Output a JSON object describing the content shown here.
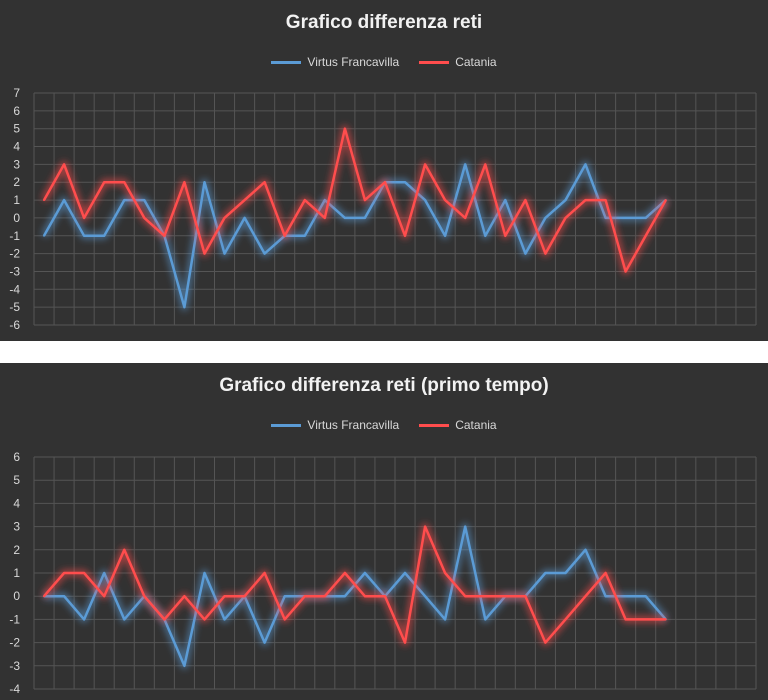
{
  "chart_data": [
    {
      "type": "line",
      "title": "Grafico differenza reti",
      "ylim": [
        -6,
        7
      ],
      "yticks": [
        -6,
        -5,
        -4,
        -3,
        -2,
        -1,
        0,
        1,
        2,
        3,
        4,
        5,
        6,
        7
      ],
      "grid": true,
      "legend_position": "top",
      "n_columns": 36,
      "series": [
        {
          "name": "Virtus Francavilla",
          "color": "#5b9bd5",
          "values": [
            -1,
            1,
            -1,
            -1,
            1,
            1,
            -1,
            -5,
            2,
            -2,
            0,
            -2,
            -1,
            -1,
            1,
            0,
            0,
            2,
            2,
            1,
            -1,
            3,
            -1,
            1,
            -2,
            0,
            1,
            3,
            0,
            0,
            0,
            1
          ]
        },
        {
          "name": "Catania",
          "color": "#ff4d4d",
          "values": [
            1,
            3,
            0,
            2,
            2,
            0,
            -1,
            2,
            -2,
            0,
            1,
            2,
            -1,
            1,
            0,
            5,
            1,
            2,
            -1,
            3,
            1,
            0,
            3,
            -1,
            1,
            -2,
            0,
            1,
            1,
            -3,
            -1,
            1
          ]
        }
      ]
    },
    {
      "type": "line",
      "title": "Grafico differenza reti (primo tempo)",
      "ylim": [
        -4,
        6
      ],
      "yticks": [
        -4,
        -3,
        -2,
        -1,
        0,
        1,
        2,
        3,
        4,
        5,
        6
      ],
      "grid": true,
      "legend_position": "top",
      "n_columns": 36,
      "series": [
        {
          "name": "Virtus Francavilla",
          "color": "#5b9bd5",
          "values": [
            0,
            0,
            -1,
            1,
            -1,
            0,
            -1,
            -3,
            1,
            -1,
            0,
            -2,
            0,
            0,
            0,
            0,
            1,
            0,
            1,
            0,
            -1,
            3,
            -1,
            0,
            0,
            1,
            1,
            2,
            0,
            0,
            0,
            -1
          ]
        },
        {
          "name": "Catania",
          "color": "#ff4d4d",
          "values": [
            0,
            1,
            1,
            0,
            2,
            0,
            -1,
            0,
            -1,
            0,
            0,
            1,
            -1,
            0,
            0,
            1,
            0,
            0,
            -2,
            3,
            1,
            0,
            0,
            0,
            0,
            -2,
            -1,
            0,
            1,
            -1,
            -1,
            -1
          ]
        }
      ]
    }
  ]
}
